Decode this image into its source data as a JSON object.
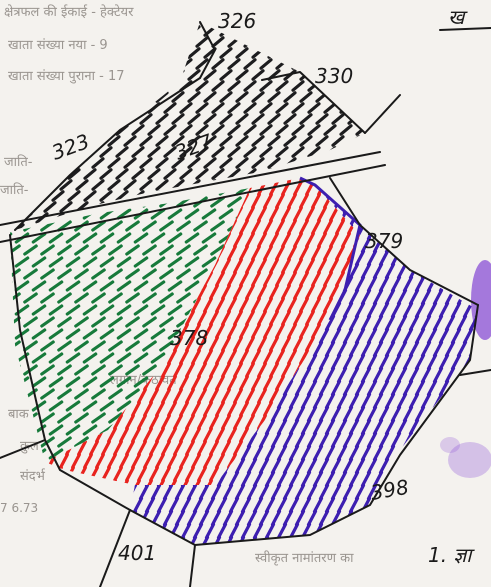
{
  "printed_form": {
    "area_unit": "क्षेत्रफल की ईकाई - हेक्टेयर",
    "khata_new": "खाता संख्या नया - 9",
    "khata_old": "खाता संख्या पुराना - 17",
    "jati": "जाति-",
    "jati2": "जाति-",
    "kathavat": "लगान/कठावत",
    "bak": "बाक",
    "kul": "कुल",
    "sandarbh": "संदर्भ",
    "value": "7  6.73",
    "footer": "स्वीकृत नामांतरण का"
  },
  "handwritten": {
    "header_mark": "ख",
    "footer_mark": "1. ज्ञा",
    "plots": {
      "p326": "326",
      "p330": "330",
      "p323": "323",
      "p327": "327",
      "p379": "379",
      "p378": "378",
      "p398": "398",
      "p401": "401"
    }
  },
  "colors": {
    "paper": "#f4f2ee",
    "ink": "#1a1a1a",
    "print": "#9a9590",
    "plot_black": "#1d1d1f",
    "plot_green": "#177a3b",
    "plot_red": "#e8231e",
    "plot_blue": "#3d1fb0",
    "purple_stain": "#8a4fd6"
  }
}
